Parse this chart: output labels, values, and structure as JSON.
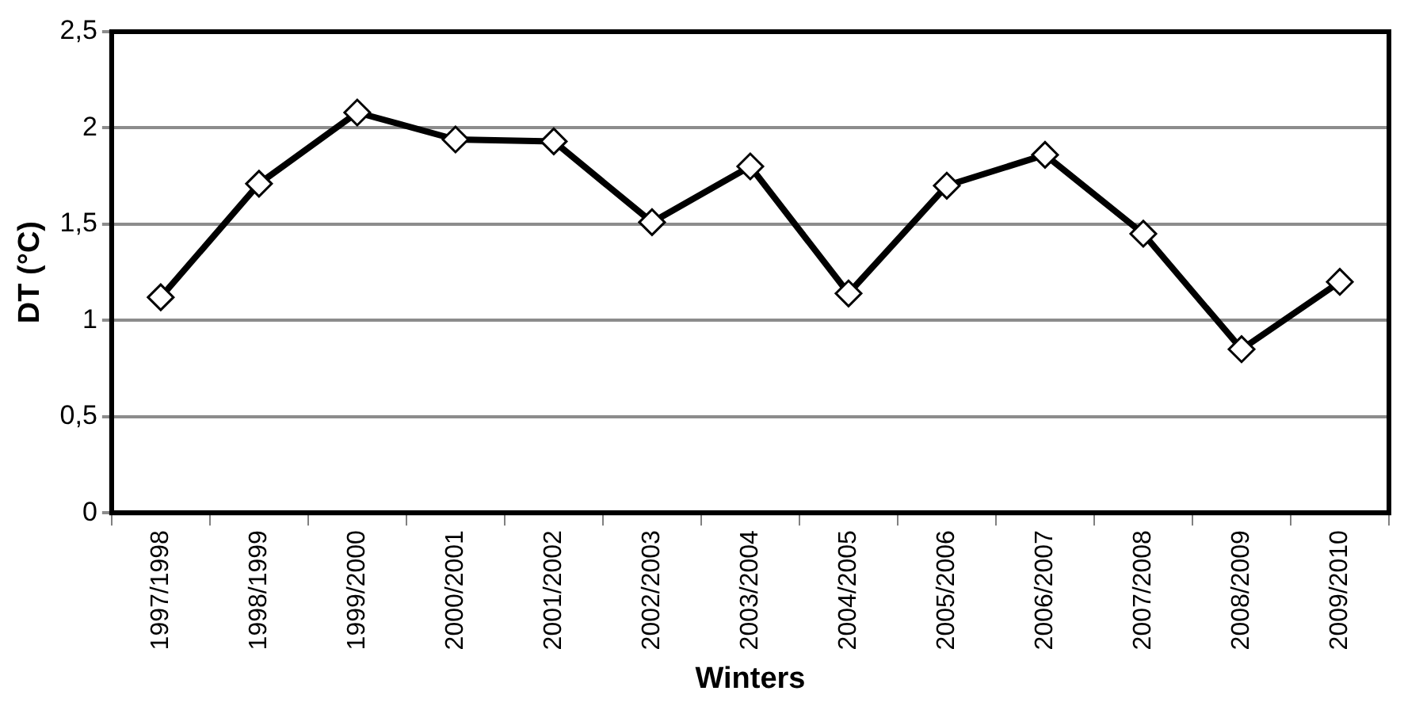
{
  "chart_data": {
    "type": "line",
    "xlabel": "Winters",
    "ylabel": "DT (°C)",
    "categories": [
      "1997/1998",
      "1998/1999",
      "1999/2000",
      "2000/2001",
      "2001/2002",
      "2002/2003",
      "2003/2004",
      "2004/2005",
      "2005/2006",
      "2006/2007",
      "2007/2008",
      "2008/2009",
      "2009/2010"
    ],
    "series": [
      {
        "color": "#000000",
        "values": [
          1.12,
          1.71,
          2.08,
          1.94,
          1.93,
          1.51,
          1.8,
          1.14,
          1.7,
          1.86,
          1.45,
          0.85,
          1.2
        ]
      }
    ],
    "ylim": [
      0,
      2.5
    ],
    "yticks": [
      0,
      {
        "value": 0.5,
        "label": "0,5"
      },
      1,
      {
        "value": 1.5,
        "label": "1,5"
      },
      2,
      {
        "value": 2.5,
        "label": "2,5"
      }
    ],
    "grid": "y",
    "legend": false,
    "marker": "diamond",
    "line_style": "solid"
  }
}
